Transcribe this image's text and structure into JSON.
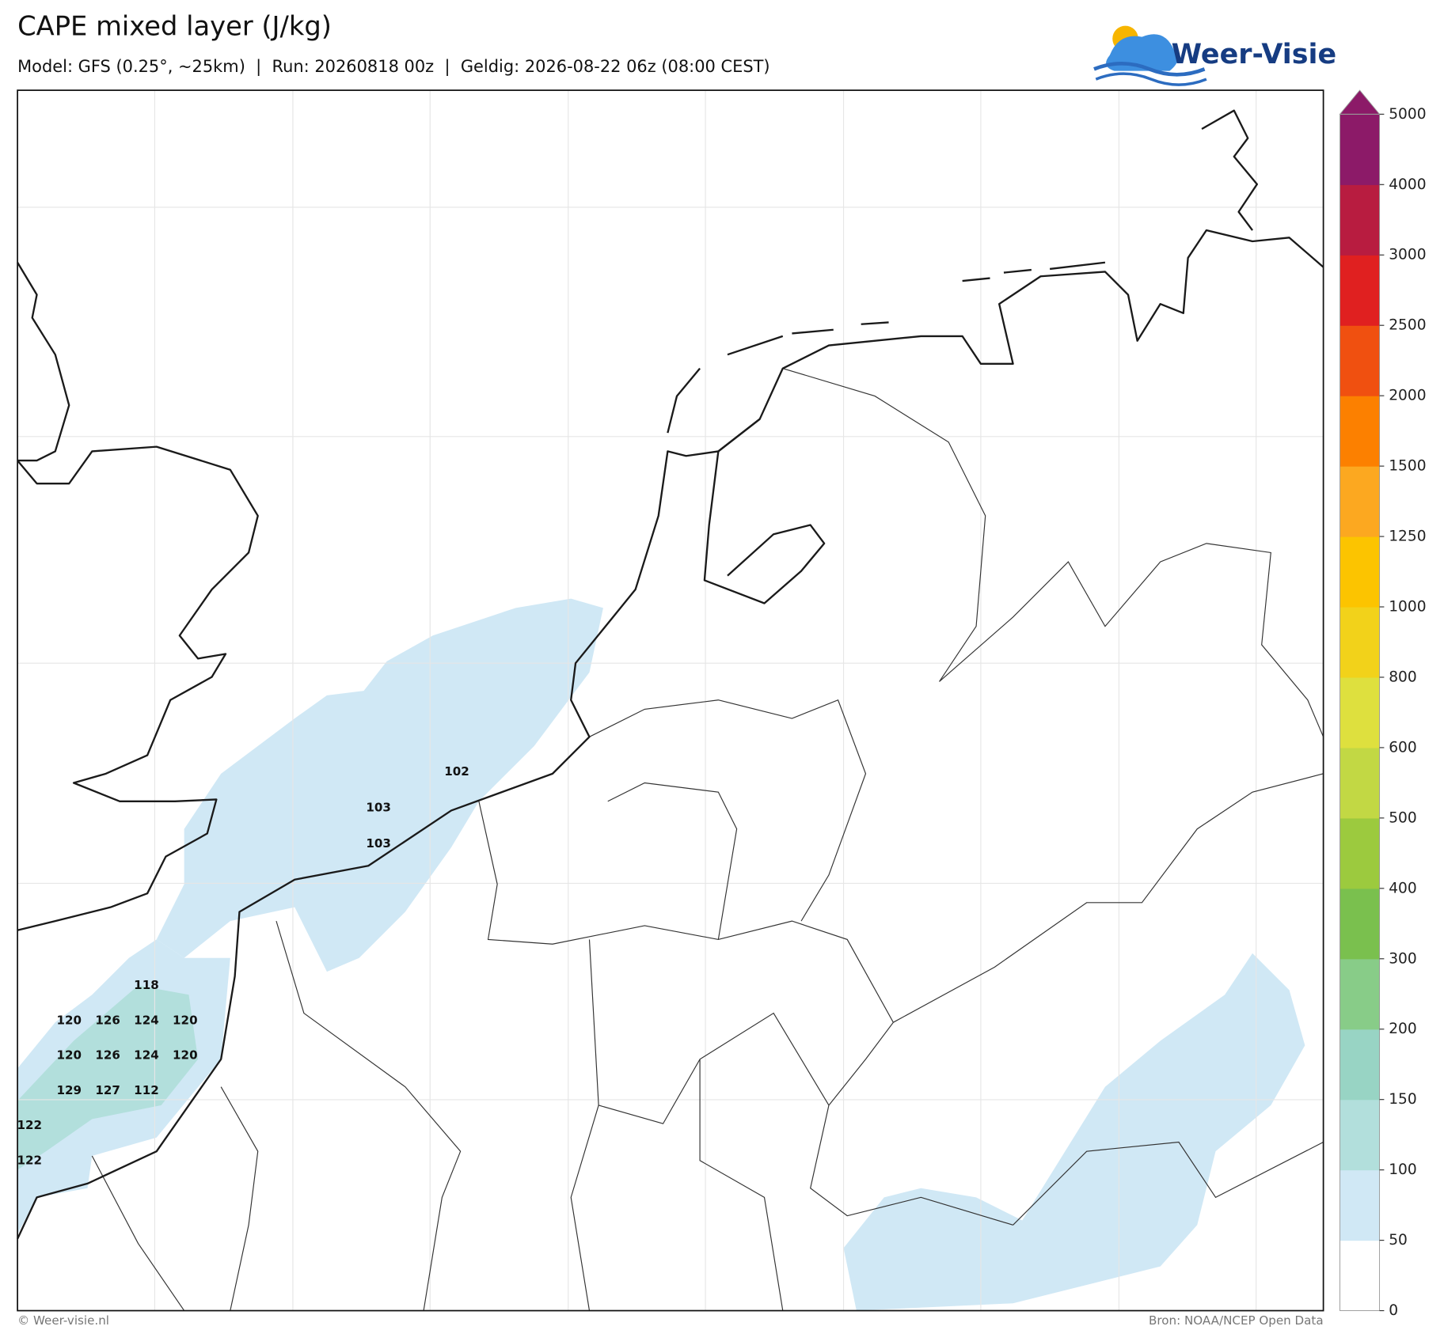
{
  "header": {
    "title": "CAPE mixed layer (J/kg)",
    "subtitle": "Model: GFS (0.25°, ~25km)  |  Run: 20260818 00z  |  Geldig: 2026-08-22 06z (08:00 CEST)",
    "logo": "Weer-Visie"
  },
  "map_labels": [
    102,
    103,
    103,
    118,
    120,
    126,
    124,
    120,
    120,
    126,
    124,
    120,
    129,
    127,
    112,
    122,
    122
  ],
  "colorbar": {
    "ticks": [
      0,
      50,
      100,
      150,
      200,
      300,
      400,
      500,
      600,
      800,
      1000,
      1250,
      1500,
      2000,
      2500,
      3000,
      4000,
      5000
    ],
    "colors": [
      "#ffffff",
      "#d0e8f5",
      "#b2dfdc",
      "#98d4c4",
      "#88cc88",
      "#7ac04e",
      "#9cca3e",
      "#c2d844",
      "#dee03e",
      "#f2d21a",
      "#fcc400",
      "#fca820",
      "#fc8000",
      "#f05010",
      "#e02020",
      "#b81c40",
      "#8c1a68"
    ]
  },
  "footer": {
    "left": "© Weer-visie.nl",
    "right": "Bron: NOAA/NCEP Open Data"
  }
}
